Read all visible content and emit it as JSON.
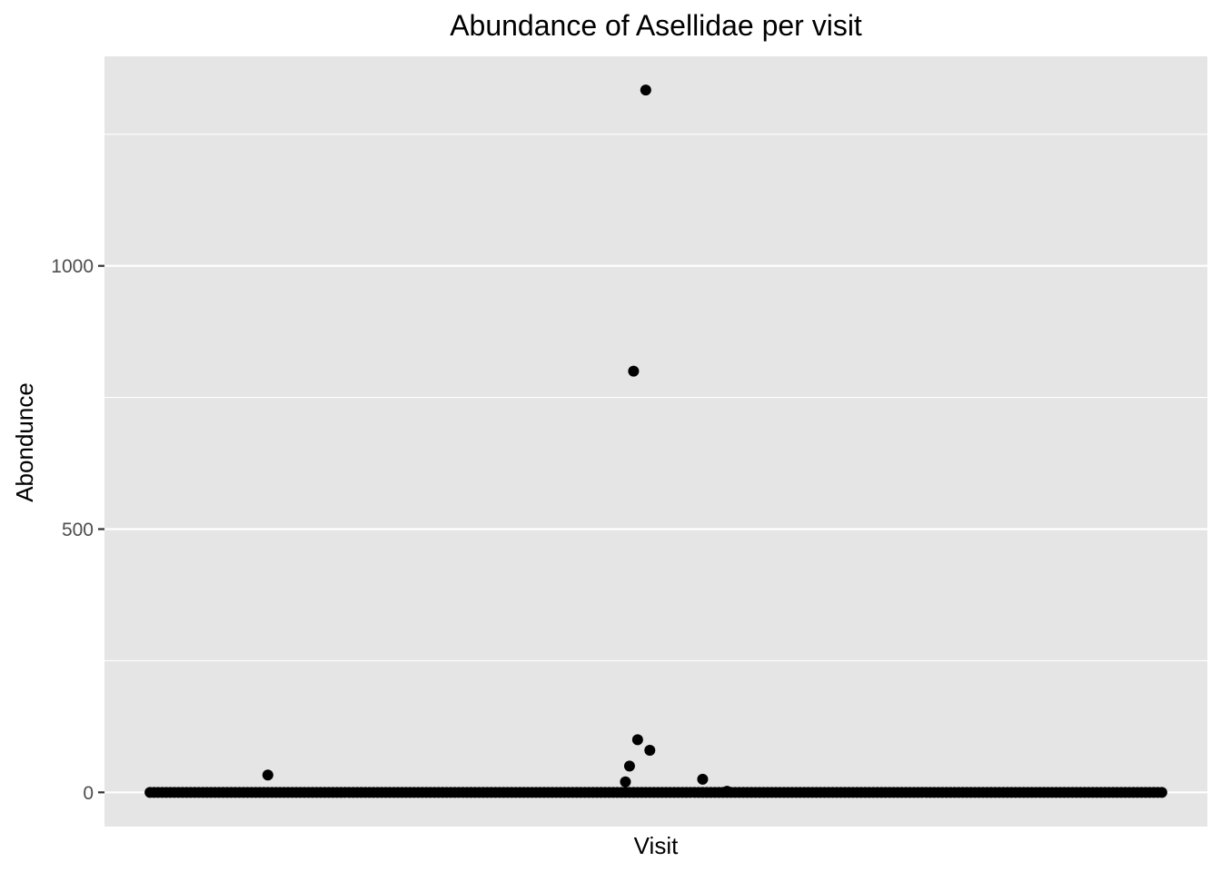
{
  "chart_data": {
    "type": "scatter",
    "title": "Abundance of Asellidae per visit",
    "xlabel": "Visit",
    "ylabel": "Abondunce",
    "ylim": [
      -65,
      1398
    ],
    "yticks": [
      0,
      500,
      1000
    ],
    "ytick_labels": [
      "0",
      "500",
      "1000"
    ],
    "y_minor_gridlines": [
      250,
      750,
      1250
    ],
    "x_ticks_visible": false,
    "grid": true,
    "point_color": "#000000",
    "panel_color": "#e5e5e5",
    "gridline_color": "#ffffff",
    "zero_visit_range": [
      1,
      250
    ],
    "series": [
      {
        "name": "Abundance",
        "points": [
          {
            "visit": 30,
            "abundance": 33
          },
          {
            "visit": 118,
            "abundance": 20
          },
          {
            "visit": 119,
            "abundance": 50
          },
          {
            "visit": 120,
            "abundance": 800
          },
          {
            "visit": 121,
            "abundance": 100
          },
          {
            "visit": 123,
            "abundance": 1334
          },
          {
            "visit": 124,
            "abundance": 80
          },
          {
            "visit": 137,
            "abundance": 25
          },
          {
            "visit": 143,
            "abundance": 2
          }
        ]
      }
    ]
  }
}
